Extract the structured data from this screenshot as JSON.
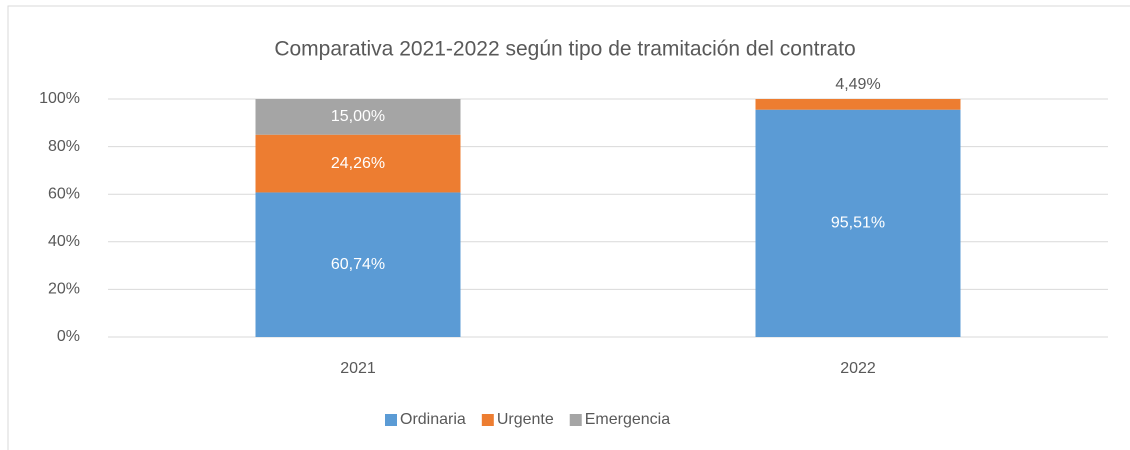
{
  "chart_data": {
    "type": "stacked_bar",
    "title": "Comparativa 2021-2022 según tipo de tramitación del contrato",
    "categories": [
      "2021",
      "2022"
    ],
    "series": [
      {
        "name": "Ordinaria",
        "color": "#5b9bd5",
        "values": [
          60.74,
          95.51
        ],
        "value_labels": [
          "60,74%",
          "95,51%"
        ]
      },
      {
        "name": "Urgente",
        "color": "#ed7d31",
        "values": [
          24.26,
          4.49
        ],
        "value_labels": [
          "24,26%",
          "4,49%"
        ]
      },
      {
        "name": "Emergencia",
        "color": "#a5a5a5",
        "values": [
          15.0,
          0
        ],
        "value_labels": [
          "15,00%",
          null
        ]
      }
    ],
    "ylim": [
      0,
      100
    ],
    "yticks": [
      {
        "value": 0,
        "label": "0%"
      },
      {
        "value": 20,
        "label": "20%"
      },
      {
        "value": 40,
        "label": "40%"
      },
      {
        "value": 60,
        "label": "60%"
      },
      {
        "value": 80,
        "label": "80%"
      },
      {
        "value": 100,
        "label": "100%"
      }
    ],
    "grid": true,
    "legend": "bottom"
  }
}
